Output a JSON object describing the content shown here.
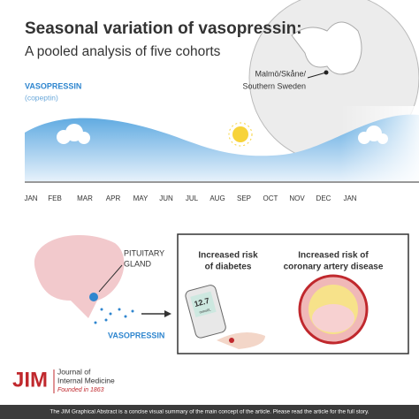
{
  "header": {
    "title": "Seasonal variation of vasopressin:",
    "subtitle": "A pooled analysis of five cohorts"
  },
  "curve": {
    "label": "VASOPRESSIN",
    "sublabel": "(copeptin)",
    "months": [
      "JAN",
      "FEB",
      "MAR",
      "APR",
      "MAY",
      "JUN",
      "JUL",
      "AUG",
      "SEP",
      "OCT",
      "NOV",
      "DEC",
      "JAN"
    ]
  },
  "map": {
    "label_lines": [
      "Malmö/Skåne/",
      "Southern Sweden"
    ]
  },
  "brain": {
    "gland_lines": [
      "PITUITARY",
      "GLAND"
    ],
    "hormone": "VASOPRESSIN"
  },
  "outcomes": [
    {
      "lines": [
        "Increased risk",
        "of diabetes"
      ]
    },
    {
      "lines": [
        "Increased risk of",
        "coronary artery disease"
      ]
    }
  ],
  "meter": {
    "reading": "12.7",
    "unit": "mmol/L"
  },
  "logo": {
    "mark": "JIM",
    "lines": [
      "Journal of",
      "Internal Medicine"
    ],
    "founded": "Founded in 1863"
  },
  "footer": "The JIM Graphical Abstract is a concise visual summary of the main concept of the article. Please read the article for the full story."
}
